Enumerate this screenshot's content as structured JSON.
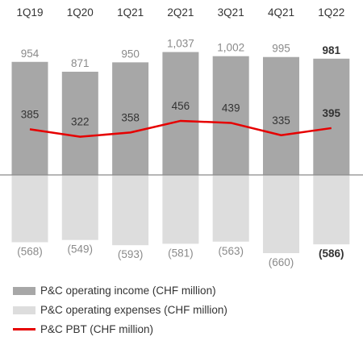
{
  "chart_data": {
    "type": "bar",
    "categories": [
      "1Q19",
      "1Q20",
      "1Q21",
      "2Q21",
      "3Q21",
      "4Q21",
      "1Q22"
    ],
    "series": [
      {
        "name": "P&C operating income (CHF million)",
        "type": "bar",
        "values": [
          954,
          871,
          950,
          1037,
          1002,
          995,
          981
        ],
        "labels": [
          "954",
          "871",
          "950",
          "1,037",
          "1,002",
          "995",
          "981"
        ],
        "color": "#a7a7a7"
      },
      {
        "name": "P&C operating expenses (CHF million)",
        "type": "bar",
        "values": [
          -568,
          -549,
          -593,
          -581,
          -563,
          -660,
          -586
        ],
        "labels": [
          "(568)",
          "(549)",
          "(593)",
          "(581)",
          "(563)",
          "(660)",
          "(586)"
        ],
        "color": "#dddddd"
      },
      {
        "name": "P&C PBT (CHF million)",
        "type": "line",
        "values": [
          385,
          322,
          358,
          456,
          439,
          335,
          395
        ],
        "labels": [
          "385",
          "322",
          "358",
          "456",
          "439",
          "335",
          "395"
        ],
        "color": "#e60000"
      }
    ],
    "highlight_last": true,
    "legend_position": "bottom-left",
    "grid": false
  }
}
